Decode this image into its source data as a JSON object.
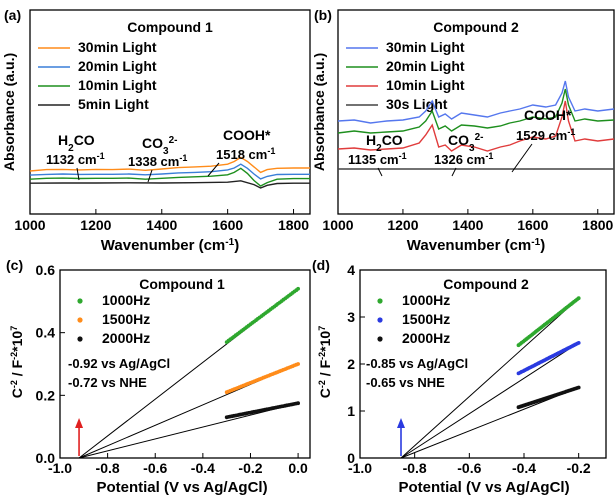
{
  "chart_data": [
    {
      "type": "line",
      "panel": "(a)",
      "title": "Compound 1",
      "xlabel": "Wavenumber (cm-1)",
      "ylabel": "Absorbance (a.u.)",
      "xlim": [
        1000,
        1850
      ],
      "xticks": [
        1000,
        1200,
        1400,
        1600,
        1800
      ],
      "ylim": [
        0,
        1
      ],
      "y_ticks_shown": false,
      "series": [
        {
          "name": "30min Light",
          "color": "#ff8c1a",
          "x": [
            1000,
            1050,
            1100,
            1150,
            1200,
            1250,
            1300,
            1350,
            1400,
            1450,
            1500,
            1550,
            1600,
            1620,
            1640,
            1660,
            1680,
            1700,
            1720,
            1750,
            1800,
            1850
          ],
          "y": [
            0.25,
            0.26,
            0.262,
            0.258,
            0.262,
            0.26,
            0.264,
            0.255,
            0.265,
            0.275,
            0.28,
            0.285,
            0.3,
            0.32,
            0.35,
            0.32,
            0.28,
            0.24,
            0.26,
            0.27,
            0.272,
            0.272
          ]
        },
        {
          "name": "20min Light",
          "color": "#3a7fd8",
          "x": [
            1000,
            1050,
            1100,
            1150,
            1200,
            1250,
            1300,
            1350,
            1400,
            1450,
            1500,
            1550,
            1600,
            1620,
            1640,
            1660,
            1680,
            1700,
            1720,
            1750,
            1800,
            1850
          ],
          "y": [
            0.22,
            0.225,
            0.228,
            0.225,
            0.226,
            0.226,
            0.228,
            0.222,
            0.228,
            0.236,
            0.24,
            0.245,
            0.258,
            0.272,
            0.3,
            0.27,
            0.228,
            0.192,
            0.21,
            0.224,
            0.226,
            0.226
          ]
        },
        {
          "name": "10min Light",
          "color": "#1e8f1e",
          "x": [
            1000,
            1050,
            1100,
            1150,
            1200,
            1250,
            1300,
            1350,
            1400,
            1450,
            1500,
            1550,
            1600,
            1620,
            1640,
            1660,
            1680,
            1700,
            1720,
            1750,
            1800,
            1850
          ],
          "y": [
            0.19,
            0.196,
            0.198,
            0.195,
            0.196,
            0.196,
            0.198,
            0.19,
            0.196,
            0.203,
            0.207,
            0.212,
            0.222,
            0.24,
            0.27,
            0.232,
            0.18,
            0.14,
            0.165,
            0.19,
            0.194,
            0.194
          ]
        },
        {
          "name": "5min Light",
          "color": "#222222",
          "x": [
            1000,
            1100,
            1200,
            1300,
            1400,
            1500,
            1600,
            1640,
            1680,
            1700,
            1720,
            1750,
            1800,
            1850
          ],
          "y": [
            0.16,
            0.162,
            0.162,
            0.163,
            0.162,
            0.164,
            0.168,
            0.178,
            0.15,
            0.125,
            0.145,
            0.158,
            0.16,
            0.16
          ]
        }
      ],
      "annotations": [
        {
          "label": "H2CO",
          "value": "1132 cm-1",
          "at": 1132
        },
        {
          "label": "CO3 2-",
          "value": "1338 cm-1",
          "at": 1338
        },
        {
          "label": "COOH*",
          "value": "1518 cm-1",
          "at": 1518
        }
      ]
    },
    {
      "type": "line",
      "panel": "(b)",
      "title": "Compound 2",
      "xlabel": "Wavenumber (cm-1)",
      "ylabel": "Absorbance (a.u.)",
      "xlim": [
        1000,
        1850
      ],
      "xticks": [
        1000,
        1200,
        1400,
        1600,
        1800
      ],
      "ylim": [
        0,
        1
      ],
      "y_ticks_shown": false,
      "series": [
        {
          "name": "30min Light",
          "color": "#5577ee",
          "x": [
            1000,
            1050,
            1100,
            1150,
            1200,
            1250,
            1270,
            1290,
            1310,
            1330,
            1350,
            1380,
            1420,
            1460,
            1500,
            1529,
            1560,
            1600,
            1640,
            1670,
            1690,
            1700,
            1710,
            1730,
            1760,
            1800,
            1850
          ],
          "y": [
            0.42,
            0.425,
            0.41,
            0.42,
            0.425,
            0.44,
            0.47,
            0.52,
            0.44,
            0.455,
            0.43,
            0.46,
            0.45,
            0.44,
            0.46,
            0.47,
            0.48,
            0.5,
            0.49,
            0.5,
            0.56,
            0.62,
            0.54,
            0.47,
            0.48,
            0.47,
            0.48
          ]
        },
        {
          "name": "20min Light",
          "color": "#1e8f1e",
          "x": [
            1000,
            1050,
            1100,
            1150,
            1200,
            1250,
            1270,
            1290,
            1310,
            1330,
            1350,
            1380,
            1420,
            1460,
            1500,
            1529,
            1560,
            1600,
            1640,
            1670,
            1690,
            1700,
            1710,
            1730,
            1760,
            1800,
            1850
          ],
          "y": [
            0.36,
            0.37,
            0.36,
            0.365,
            0.37,
            0.39,
            0.42,
            0.47,
            0.38,
            0.395,
            0.37,
            0.4,
            0.395,
            0.385,
            0.395,
            0.41,
            0.42,
            0.44,
            0.43,
            0.44,
            0.51,
            0.58,
            0.5,
            0.42,
            0.43,
            0.42,
            0.425
          ]
        },
        {
          "name": "10min Light",
          "color": "#e03c3c",
          "x": [
            1000,
            1050,
            1100,
            1150,
            1200,
            1250,
            1270,
            1290,
            1310,
            1330,
            1350,
            1380,
            1420,
            1460,
            1500,
            1529,
            1560,
            1600,
            1640,
            1670,
            1690,
            1700,
            1710,
            1730,
            1760,
            1800,
            1850
          ],
          "y": [
            0.28,
            0.285,
            0.275,
            0.28,
            0.285,
            0.31,
            0.35,
            0.4,
            0.29,
            0.3,
            0.27,
            0.3,
            0.29,
            0.27,
            0.29,
            0.3,
            0.32,
            0.34,
            0.33,
            0.345,
            0.44,
            0.52,
            0.42,
            0.32,
            0.33,
            0.32,
            0.33
          ]
        },
        {
          "name": "30s Light",
          "color": "#444444",
          "x": [
            1000,
            1200,
            1400,
            1600,
            1850
          ],
          "y": [
            0.18,
            0.18,
            0.18,
            0.18,
            0.18
          ]
        }
      ],
      "annotations": [
        {
          "label": "H2CO",
          "value": "1135 cm-1",
          "at": 1135
        },
        {
          "label": "CO3 2-",
          "value": "1326 cm-1",
          "at": 1326
        },
        {
          "label": "COOH*",
          "value": "1529 cm-1",
          "at": 1529
        }
      ]
    },
    {
      "type": "scatter",
      "panel": "(c)",
      "title": "Compound 1",
      "xlabel": "Potential (V vs Ag/AgCl)",
      "ylabel": "C-2 / F-2*10^7",
      "xlim": [
        -1.0,
        0.05
      ],
      "ylim": [
        0.0,
        0.6
      ],
      "xticks": [
        -1.0,
        -0.8,
        -0.6,
        -0.4,
        -0.2,
        0.0
      ],
      "yticks": [
        0.0,
        0.2,
        0.4,
        0.6
      ],
      "xtick_labels": [
        "-1.0",
        "-0.8",
        "-0.6",
        "-0.4",
        "-0.2",
        "0.0"
      ],
      "ytick_labels": [
        "0.0",
        "0.2",
        "0.4",
        "0.6"
      ],
      "series": [
        {
          "name": "1000Hz",
          "color": "#2ea82e",
          "x_range": [
            -0.3,
            0.0
          ],
          "y_range": [
            0.37,
            0.54
          ],
          "n": 40,
          "fit_to": -0.92
        },
        {
          "name": "1500Hz",
          "color": "#ff8c1a",
          "x_range": [
            -0.3,
            0.0
          ],
          "y_range": [
            0.21,
            0.3
          ],
          "n": 40,
          "fit_to": -0.92
        },
        {
          "name": "2000Hz",
          "color": "#111111",
          "x_range": [
            -0.3,
            0.0
          ],
          "y_range": [
            0.13,
            0.175
          ],
          "n": 40,
          "fit_to": -0.92
        }
      ],
      "intercept_text": [
        "-0.92 vs Ag/AgCl",
        "-0.72 vs NHE"
      ],
      "arrow": {
        "x": -0.92,
        "color": "#e02020"
      }
    },
    {
      "type": "scatter",
      "panel": "(d)",
      "title": "Compound 2",
      "xlabel": "Potential (V vs Ag/AgCl)",
      "ylabel": "C-2 / F-2*10^7",
      "xlim": [
        -1.0,
        -0.1
      ],
      "ylim": [
        0,
        4
      ],
      "xticks": [
        -1.0,
        -0.8,
        -0.6,
        -0.4,
        -0.2
      ],
      "yticks": [
        0,
        1,
        2,
        3,
        4
      ],
      "xtick_labels": [
        "-1.0",
        "-0.8",
        "-0.6",
        "-0.4",
        "-0.2"
      ],
      "ytick_labels": [
        "0",
        "1",
        "2",
        "3",
        "4"
      ],
      "series": [
        {
          "name": "1000Hz",
          "color": "#2ea82e",
          "x_range": [
            -0.42,
            -0.2
          ],
          "y_range": [
            2.4,
            3.4
          ],
          "n": 40,
          "fit_to": -0.85
        },
        {
          "name": "1500Hz",
          "color": "#2a3ae0",
          "x_range": [
            -0.42,
            -0.2
          ],
          "y_range": [
            1.8,
            2.45
          ],
          "n": 40,
          "fit_to": -0.85
        },
        {
          "name": "2000Hz",
          "color": "#111111",
          "x_range": [
            -0.42,
            -0.2
          ],
          "y_range": [
            1.08,
            1.5
          ],
          "n": 40,
          "fit_to": -0.85
        }
      ],
      "intercept_text": [
        "-0.85 vs Ag/AgCl",
        "-0.65 vs NHE"
      ],
      "arrow": {
        "x": -0.85,
        "color": "#2a3ae0"
      }
    }
  ]
}
